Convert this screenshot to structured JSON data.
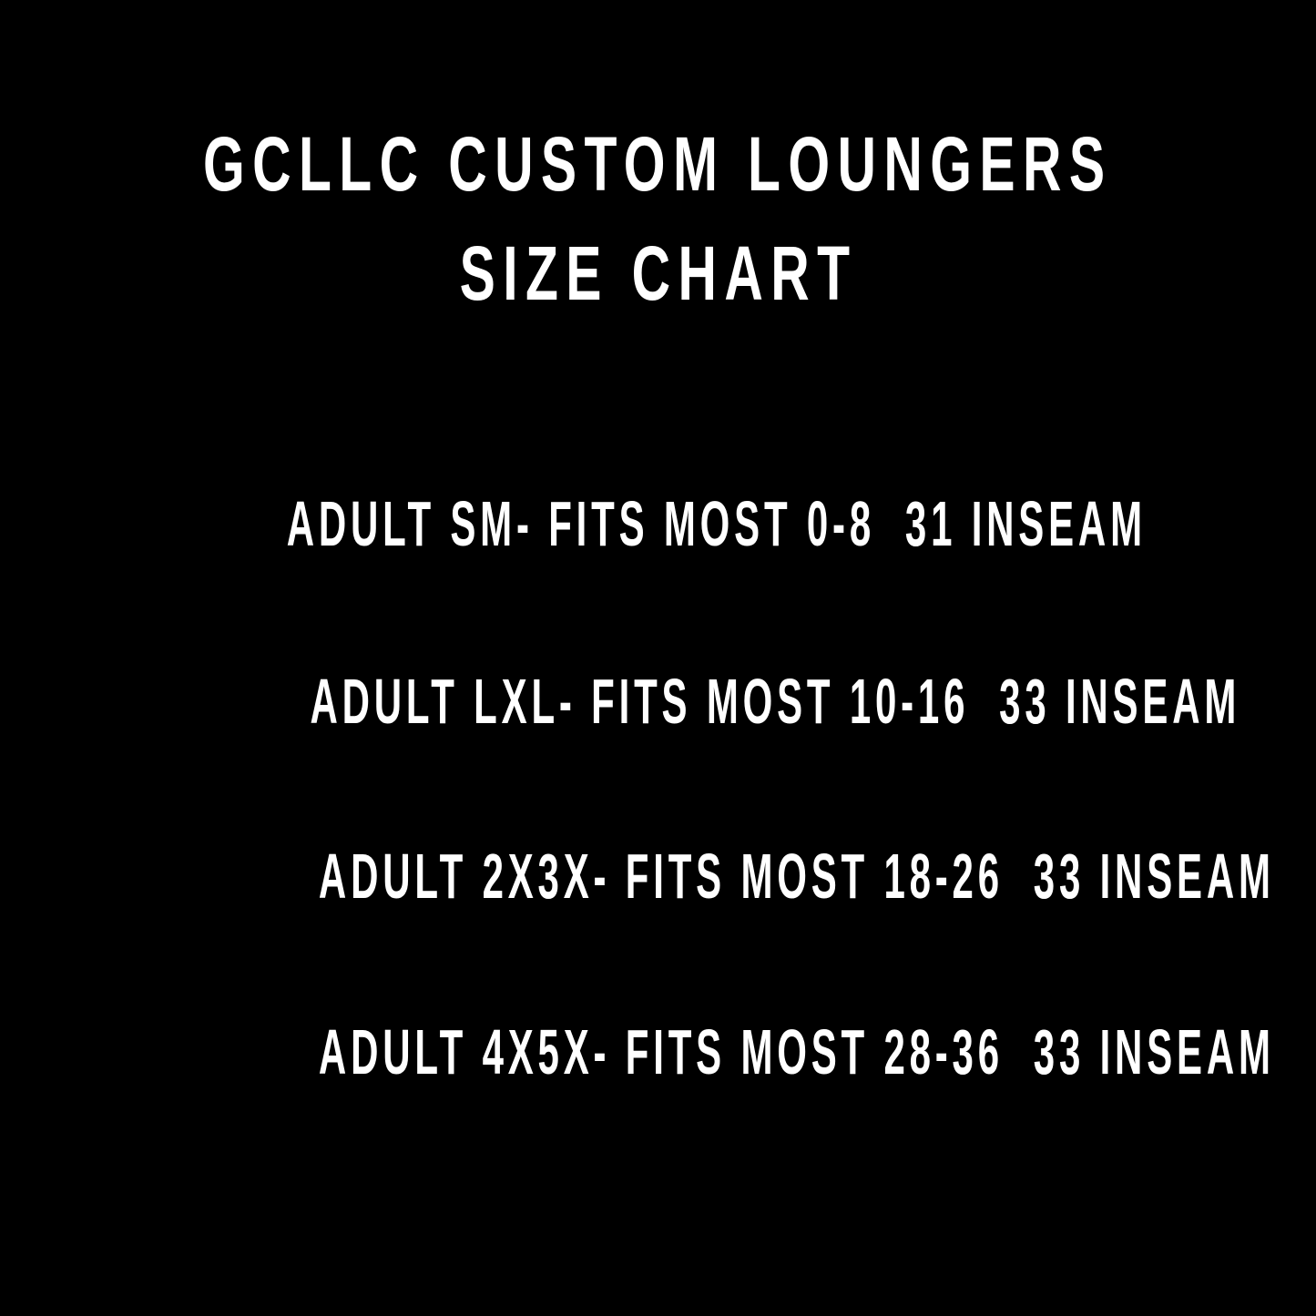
{
  "title": {
    "line1": "GCLLC CUSTOM LOUNGERS",
    "line2": "SIZE CHART"
  },
  "sizes": [
    {
      "text": "ADULT SM- FITS MOST 0-8  31 INSEAM"
    },
    {
      "text": "ADULT LXL- FITS MOST 10-16  33 INSEAM"
    },
    {
      "text": "ADULT 2X3X- FITS MOST 18-26  33 INSEAM"
    },
    {
      "text": "ADULT 4X5X- FITS MOST 28-36  33 INSEAM"
    }
  ],
  "colors": {
    "background": "#000000",
    "text": "#ffffff"
  }
}
